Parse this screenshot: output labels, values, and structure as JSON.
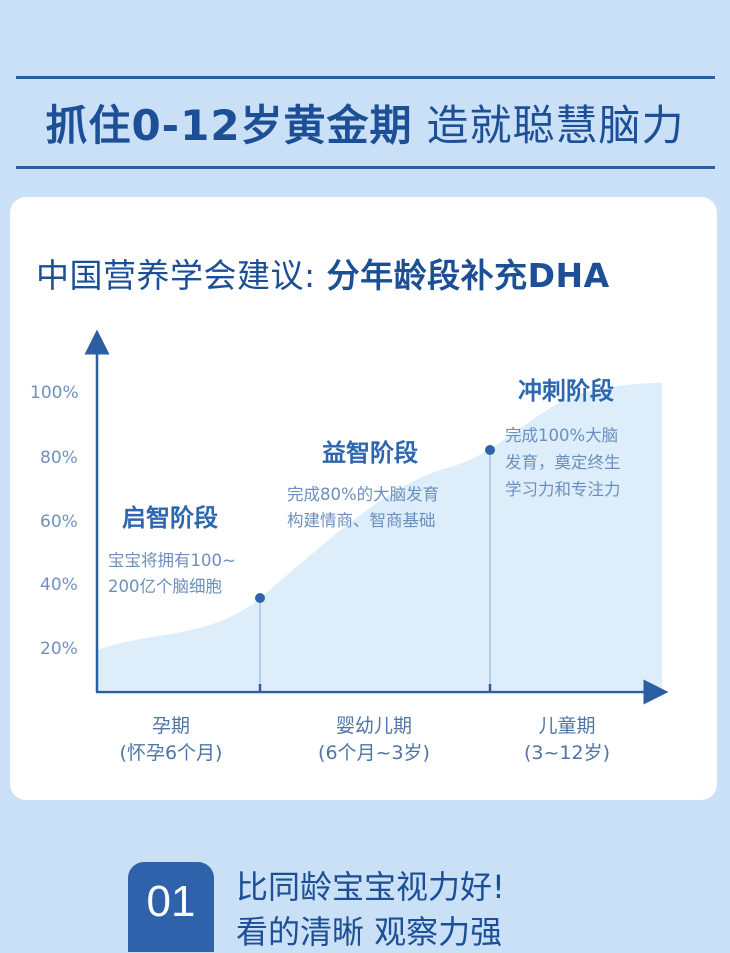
{
  "header": {
    "headline_part1": "抓住0-12岁黄金期",
    "headline_part2": "造就聪慧脑力"
  },
  "card": {
    "title_prefix": "中国营养学会建议: ",
    "title_strong": "分年龄段补充DHA"
  },
  "chart_data": {
    "type": "area",
    "y_ticks": [
      "100%",
      "80%",
      "60%",
      "40%",
      "20%"
    ],
    "x_categories": [
      {
        "label": "孕期",
        "sub": "(怀孕6个月)"
      },
      {
        "label": "婴幼儿期",
        "sub": "(6个月~3岁)"
      },
      {
        "label": "儿童期",
        "sub": "(3~12岁)"
      }
    ],
    "stages": [
      {
        "title": "启智阶段",
        "desc": [
          "宝宝将拥有100~",
          "200亿个脑细胞"
        ],
        "value_pct": 35
      },
      {
        "title": "益智阶段",
        "desc": [
          "完成80%的大脑发育",
          "构建情商、智商基础"
        ],
        "value_pct": 80
      },
      {
        "title": "冲刺阶段",
        "desc": [
          "完成100%大脑",
          "发育，奠定终生",
          "学习力和专注力"
        ],
        "value_pct": 100
      }
    ],
    "colors": {
      "area": "#ddeefa",
      "axis": "#2b5ea3",
      "marker": "#2f63a8"
    }
  },
  "feature": {
    "number": "01",
    "line1": "比同龄宝宝视力好!",
    "line2": "看的清晰  观察力强"
  }
}
